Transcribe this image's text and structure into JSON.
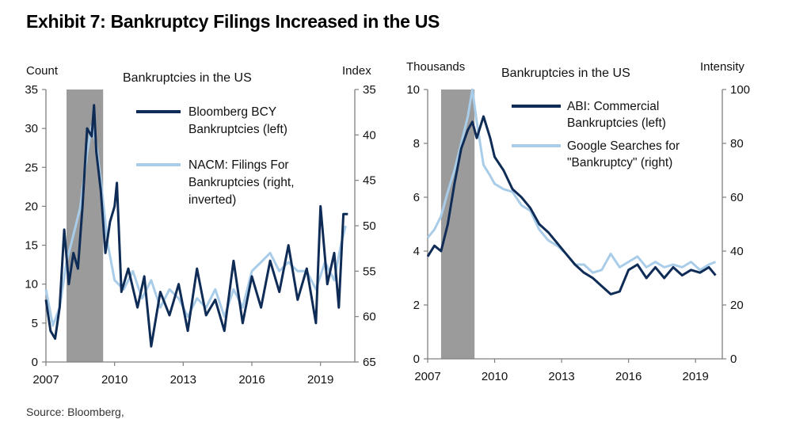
{
  "title": "Exhibit 7: Bankruptcy Filings Increased in the US",
  "source": "Source: Bloomberg,",
  "colors": {
    "dark_series": "#0f2c57",
    "light_series": "#a9cce8",
    "recession": "#9b9b9b",
    "axis": "#7f7f7f"
  },
  "chart_data": [
    {
      "type": "line",
      "title": "Bankruptcies in the US",
      "ylabel_left": "Count",
      "ylabel_right": "Index",
      "xlim": [
        2007,
        2020.5
      ],
      "ylim_left": [
        0,
        35
      ],
      "ylim_right": [
        35,
        65
      ],
      "right_axis_inverted": true,
      "x_ticks": [
        "2007",
        "2010",
        "2013",
        "2016",
        "2019"
      ],
      "y_ticks_left": [
        "0",
        "5",
        "10",
        "15",
        "20",
        "25",
        "30",
        "35"
      ],
      "y_ticks_right": [
        "35",
        "40",
        "45",
        "50",
        "55",
        "60",
        "65"
      ],
      "shaded_range": [
        2007.9,
        2009.5
      ],
      "series": [
        {
          "name": "Bloomberg BCY Bankruptcies (left)",
          "axis": "left",
          "x": [
            2007.0,
            2007.2,
            2007.4,
            2007.6,
            2007.8,
            2008.0,
            2008.2,
            2008.4,
            2008.6,
            2008.8,
            2009.0,
            2009.1,
            2009.2,
            2009.4,
            2009.6,
            2009.8,
            2010.0,
            2010.1,
            2010.3,
            2010.6,
            2011.0,
            2011.3,
            2011.6,
            2012.0,
            2012.4,
            2012.8,
            2013.2,
            2013.6,
            2014.0,
            2014.4,
            2014.8,
            2015.2,
            2015.6,
            2016.0,
            2016.4,
            2016.8,
            2017.2,
            2017.6,
            2018.0,
            2018.4,
            2018.8,
            2019.0,
            2019.3,
            2019.6,
            2019.8,
            2020.0,
            2020.2
          ],
          "y": [
            8,
            4,
            3,
            7,
            17,
            10,
            14,
            12,
            20,
            30,
            29,
            33,
            27,
            22,
            14,
            18,
            20,
            23,
            9,
            12,
            7,
            11,
            2,
            9,
            6,
            10,
            4,
            12,
            6,
            8,
            4,
            13,
            5,
            11,
            7,
            13,
            9,
            15,
            8,
            12,
            5,
            20,
            10,
            14,
            7,
            19,
            19
          ]
        },
        {
          "name": "NACM: Filings For Bankruptcies (right, inverted)",
          "axis": "right",
          "x": [
            2007.0,
            2007.3,
            2007.6,
            2007.9,
            2008.2,
            2008.5,
            2008.8,
            2009.0,
            2009.2,
            2009.4,
            2009.7,
            2010.0,
            2010.4,
            2010.8,
            2011.2,
            2011.6,
            2012.0,
            2012.4,
            2012.8,
            2013.2,
            2013.6,
            2014.0,
            2014.4,
            2014.8,
            2015.2,
            2015.6,
            2016.0,
            2016.4,
            2016.8,
            2017.2,
            2017.6,
            2018.0,
            2018.4,
            2018.8,
            2019.2,
            2019.6,
            2019.9,
            2020.1
          ],
          "y": [
            57,
            61,
            59,
            54,
            51,
            48,
            42,
            39,
            41,
            45,
            52,
            56,
            57,
            55,
            58,
            56,
            59,
            57,
            58,
            60,
            58,
            59,
            57,
            60,
            57,
            59,
            55,
            54,
            53,
            55,
            54,
            55,
            55,
            57,
            54,
            56,
            52,
            50
          ]
        }
      ]
    },
    {
      "type": "line",
      "title": "Bankruptcies in the US",
      "ylabel_left": "Thousands",
      "ylabel_right": "Intensity",
      "xlim": [
        2007,
        2020.2
      ],
      "ylim_left": [
        0,
        10
      ],
      "ylim_right": [
        0,
        100
      ],
      "x_ticks": [
        "2007",
        "2010",
        "2013",
        "2016",
        "2019"
      ],
      "y_ticks_left": [
        "0",
        "2",
        "4",
        "6",
        "8",
        "10"
      ],
      "y_ticks_right": [
        "0",
        "20",
        "40",
        "60",
        "80",
        "100"
      ],
      "shaded_range": [
        2007.6,
        2009.1
      ],
      "series": [
        {
          "name": "ABI: Commercial Bankruptcies (left)",
          "axis": "left",
          "x": [
            2007.0,
            2007.3,
            2007.6,
            2007.9,
            2008.2,
            2008.5,
            2008.8,
            2009.0,
            2009.2,
            2009.5,
            2009.8,
            2010.0,
            2010.4,
            2010.8,
            2011.2,
            2011.6,
            2012.0,
            2012.4,
            2012.8,
            2013.2,
            2013.6,
            2014.0,
            2014.4,
            2014.8,
            2015.2,
            2015.6,
            2016.0,
            2016.4,
            2016.8,
            2017.2,
            2017.6,
            2018.0,
            2018.4,
            2018.8,
            2019.2,
            2019.6,
            2019.9
          ],
          "y": [
            3.8,
            4.2,
            4.0,
            5.0,
            6.5,
            7.8,
            8.5,
            8.8,
            8.2,
            9.0,
            8.2,
            7.5,
            7.0,
            6.3,
            6.0,
            5.6,
            5.0,
            4.7,
            4.3,
            3.9,
            3.5,
            3.2,
            3.0,
            2.7,
            2.4,
            2.5,
            3.3,
            3.5,
            3.0,
            3.4,
            3.0,
            3.4,
            3.1,
            3.3,
            3.2,
            3.4,
            3.1
          ]
        },
        {
          "name": "Google Searches for \"Bankruptcy\" (right)",
          "axis": "right",
          "x": [
            2007.0,
            2007.3,
            2007.6,
            2007.9,
            2008.2,
            2008.5,
            2008.8,
            2009.0,
            2009.2,
            2009.5,
            2009.8,
            2010.0,
            2010.4,
            2010.8,
            2011.2,
            2011.6,
            2012.0,
            2012.4,
            2012.8,
            2013.2,
            2013.6,
            2014.0,
            2014.4,
            2014.8,
            2015.2,
            2015.6,
            2016.0,
            2016.4,
            2016.8,
            2017.2,
            2017.6,
            2018.0,
            2018.4,
            2018.8,
            2019.2,
            2019.6,
            2019.9
          ],
          "y": [
            45,
            48,
            53,
            62,
            70,
            80,
            90,
            100,
            88,
            72,
            68,
            65,
            63,
            62,
            57,
            55,
            48,
            44,
            42,
            39,
            35,
            35,
            32,
            33,
            39,
            34,
            36,
            38,
            34,
            36,
            34,
            35,
            34,
            36,
            33,
            35,
            36
          ]
        }
      ]
    }
  ]
}
